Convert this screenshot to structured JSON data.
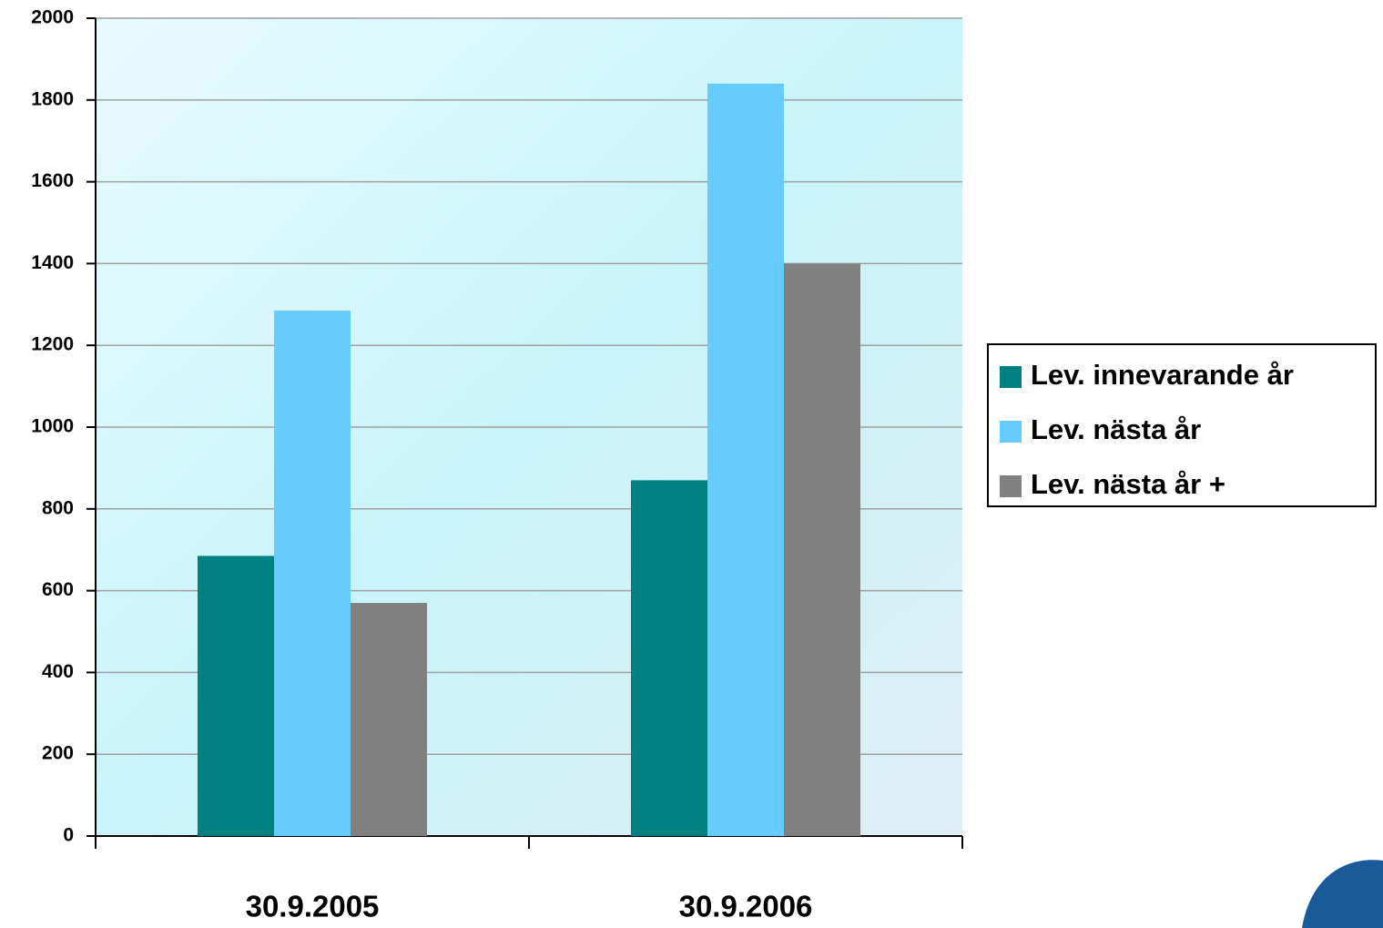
{
  "chart_data": {
    "type": "bar",
    "categories": [
      "30.9.2005",
      "30.9.2006"
    ],
    "series": [
      {
        "name": "Lev. innevarande år",
        "color": "#008080",
        "values": [
          685,
          870
        ]
      },
      {
        "name": "Lev. nästa år",
        "color": "#66ccff",
        "values": [
          1285,
          1840
        ]
      },
      {
        "name": "Lev. nästa år +",
        "color": "#808080",
        "values": [
          570,
          1400
        ]
      }
    ],
    "ylim": [
      0,
      2000
    ],
    "yticks": [
      0,
      200,
      400,
      600,
      800,
      1000,
      1200,
      1400,
      1600,
      1800,
      2000
    ],
    "grid": true,
    "legend": "right"
  }
}
